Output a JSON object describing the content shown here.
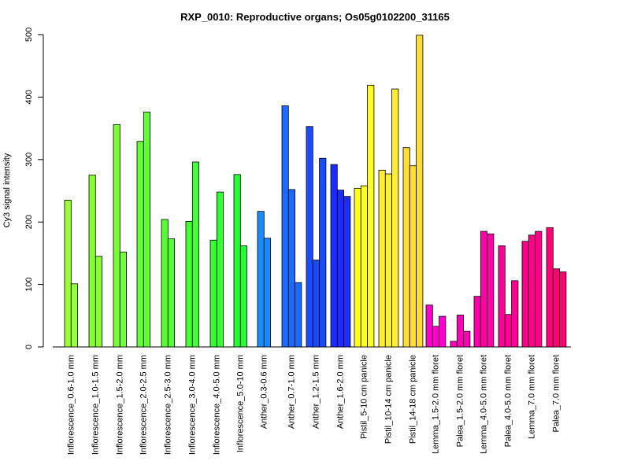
{
  "chart_data": {
    "type": "bar",
    "title": "RXP_0010: Reproductive organs; Os05g0102200_31165",
    "xlabel": "",
    "ylabel": "Cy3 signal intensity",
    "ylim": [
      0,
      500
    ],
    "yticks": [
      0,
      100,
      200,
      300,
      400,
      500
    ],
    "grid": false,
    "groups": [
      {
        "label": "Inflorescence_0.6-1.0 mm",
        "color": "#99ff33",
        "values": [
          235,
          101
        ]
      },
      {
        "label": "Inflorescence_1.0-1.5 mm",
        "color": "#88ff33",
        "values": [
          275,
          145
        ]
      },
      {
        "label": "Inflorescence_1.5-2.0 mm",
        "color": "#77ff33",
        "values": [
          356,
          152
        ]
      },
      {
        "label": "Inflorescence_2.0-2.5 mm",
        "color": "#66ff33",
        "values": [
          329,
          376
        ]
      },
      {
        "label": "Inflorescence_2.5-3.0 mm",
        "color": "#55ff33",
        "values": [
          204,
          173
        ]
      },
      {
        "label": "Inflorescence_3.0-4.0 mm",
        "color": "#44ff33",
        "values": [
          201,
          296
        ]
      },
      {
        "label": "Inflorescence_4.0-5.0 mm",
        "color": "#33ff33",
        "values": [
          171,
          248
        ]
      },
      {
        "label": "Inflorescence_5.0-10 mm",
        "color": "#22ff33",
        "values": [
          276,
          162
        ]
      },
      {
        "label": "Anther_0.3-0.6 mm",
        "color": "#1a8cff",
        "values": [
          217,
          174
        ]
      },
      {
        "label": "Anther_0.7-1.0 mm",
        "color": "#1a6cff",
        "values": [
          386,
          252,
          103
        ]
      },
      {
        "label": "Anther_1.2-1.5 mm",
        "color": "#1a4cff",
        "values": [
          353,
          139,
          302
        ]
      },
      {
        "label": "Anther_1.6-2.0 mm",
        "color": "#1a2cff",
        "values": [
          292,
          251,
          241
        ]
      },
      {
        "label": "Pistil_5-10 cm panicle",
        "color": "#ffff1a",
        "values": [
          254,
          258,
          419
        ]
      },
      {
        "label": "Pistil_10-14 cm panicle",
        "color": "#ffee33",
        "values": [
          283,
          277,
          413
        ]
      },
      {
        "label": "Pistil_14-18 cm panicle",
        "color": "#ffdd33",
        "values": [
          319,
          290,
          499
        ]
      },
      {
        "label": "Lemma_1.5-2.0 mm floret",
        "color": "#ff00cc",
        "values": [
          67,
          33,
          49
        ]
      },
      {
        "label": "Palea_1.5-2.0 mm floret",
        "color": "#ff00bb",
        "values": [
          9,
          51,
          25
        ]
      },
      {
        "label": "Lemma_4.0-5.0 mm floret",
        "color": "#ff00aa",
        "values": [
          81,
          185,
          181
        ]
      },
      {
        "label": "Palea_4.0-5.0 mm floret",
        "color": "#ff0099",
        "values": [
          162,
          52,
          106
        ]
      },
      {
        "label": "Lemma_7.0 mm floret",
        "color": "#ff0088",
        "values": [
          169,
          179,
          185
        ]
      },
      {
        "label": "Palea_7.0 mm floret",
        "color": "#ff0077",
        "values": [
          191,
          125,
          120
        ]
      }
    ]
  }
}
